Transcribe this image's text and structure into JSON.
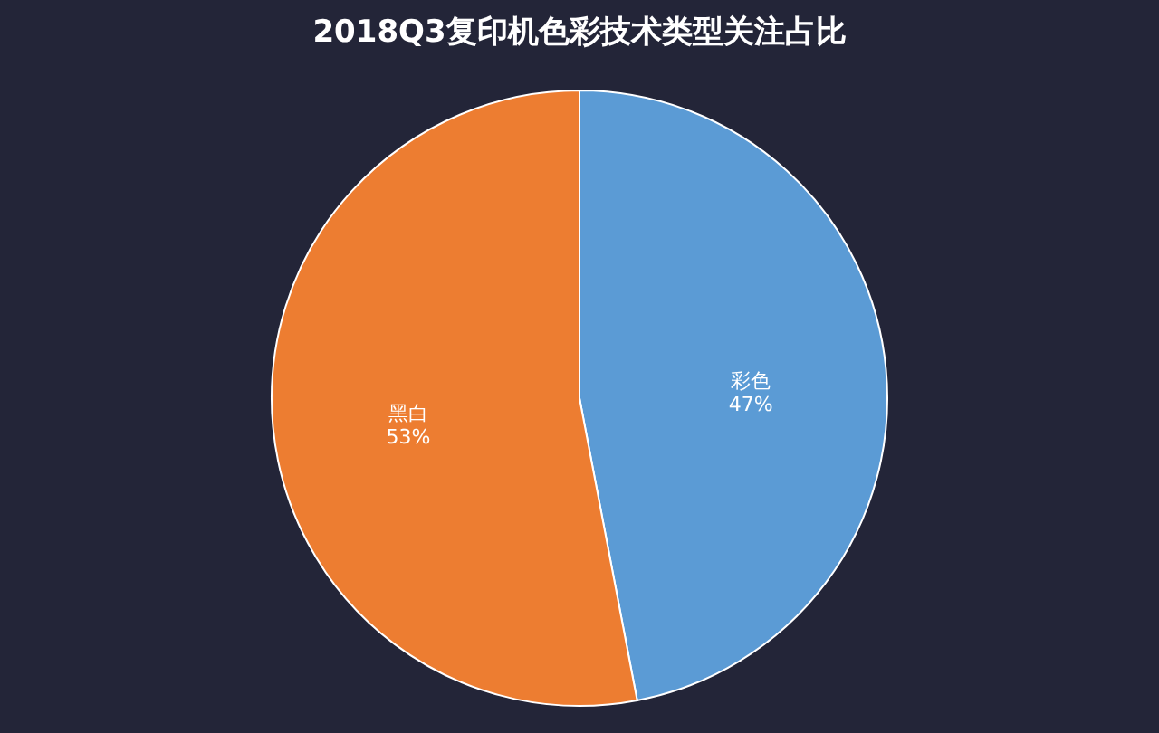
{
  "chart_data": {
    "type": "pie",
    "title": "2018Q3复印机色彩技术类型关注占比",
    "categories": [
      "彩色",
      "黑白"
    ],
    "values": [
      47,
      53
    ],
    "colors": [
      "#5b9bd5",
      "#ed7d31"
    ],
    "value_labels": [
      "47%",
      "53%"
    ]
  }
}
